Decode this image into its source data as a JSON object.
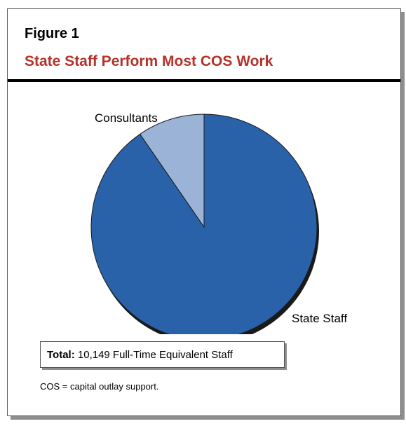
{
  "figure": {
    "number": "Figure 1",
    "title": "State Staff Perform Most COS Work",
    "title_color": "#b5322a"
  },
  "chart_data": {
    "type": "pie",
    "slices": [
      {
        "label": "State Staff",
        "value": 90.4,
        "color": "#2962a8"
      },
      {
        "label": "Consultants",
        "value": 9.6,
        "color": "#9bb3d7"
      }
    ],
    "start_angle_deg": 0,
    "direction": "clockwise",
    "shadow_color": "#1a1a1a",
    "stroke_color": "#1a1a1a"
  },
  "total_box": {
    "label": "Total:",
    "text": "10,149 Full-Time Equivalent Staff"
  },
  "footnote": "COS = capital outlay support."
}
